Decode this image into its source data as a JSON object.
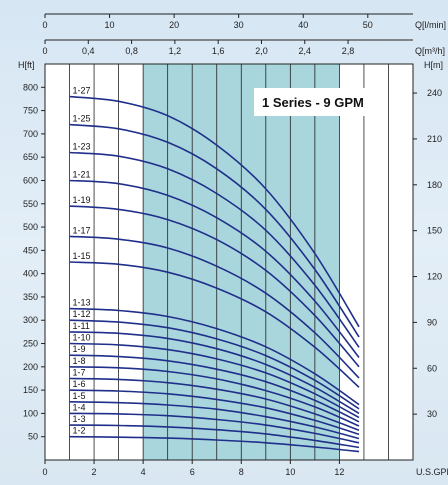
{
  "chart_data": {
    "type": "line",
    "title": "1 Series - 9 GPM",
    "xlabel": "U.S.GPM",
    "ylabel": "H[ft]",
    "x_range": [
      0,
      15
    ],
    "y_range": [
      0,
      850
    ],
    "x_ticks": [
      "0",
      "2",
      "4",
      "6",
      "8",
      "10",
      "12"
    ],
    "y_ticks": [
      "50",
      "100",
      "150",
      "200",
      "250",
      "300",
      "350",
      "400",
      "450",
      "500",
      "550",
      "600",
      "650",
      "700",
      "750",
      "800"
    ],
    "top_axis_q_lmin": {
      "label": "Q[l/min]",
      "ticks": [
        "0",
        "10",
        "20",
        "30",
        "40",
        "50"
      ],
      "range": [
        0,
        57
      ]
    },
    "top_axis_q_m3h": {
      "label": "Q[m³/h]",
      "ticks": [
        "0",
        "0,4",
        "0,8",
        "1,2",
        "1,6",
        "2,0",
        "2,4",
        "2,8"
      ],
      "range": [
        0,
        3.4
      ]
    },
    "right_axis_h_m": {
      "label": "H[m]",
      "ticks": [
        "30",
        "60",
        "90",
        "120",
        "150",
        "180",
        "210",
        "240"
      ],
      "range": [
        0,
        259
      ]
    },
    "recommended_range_gpm": [
      4,
      12
    ],
    "grid": true,
    "series": [
      {
        "name": "1-2",
        "x": [
          1,
          3,
          5,
          7,
          9,
          11,
          12.8
        ],
        "y": [
          50,
          49,
          47,
          43,
          37,
          28,
          18
        ]
      },
      {
        "name": "1-3",
        "x": [
          1,
          3,
          5,
          7,
          9,
          11,
          12.8
        ],
        "y": [
          75,
          74,
          71,
          65,
          56,
          42,
          27
        ]
      },
      {
        "name": "1-4",
        "x": [
          1,
          3,
          5,
          7,
          9,
          11,
          12.8
        ],
        "y": [
          100,
          99,
          95,
          87,
          75,
          57,
          37
        ]
      },
      {
        "name": "1-5",
        "x": [
          1,
          3,
          5,
          7,
          9,
          11,
          12.8
        ],
        "y": [
          125,
          123,
          118,
          109,
          93,
          71,
          46
        ]
      },
      {
        "name": "1-6",
        "x": [
          1,
          3,
          5,
          7,
          9,
          11,
          12.8
        ],
        "y": [
          150,
          148,
          142,
          130,
          112,
          85,
          55
        ]
      },
      {
        "name": "1-7",
        "x": [
          1,
          3,
          5,
          7,
          9,
          11,
          12.8
        ],
        "y": [
          175,
          173,
          166,
          152,
          131,
          99,
          64
        ]
      },
      {
        "name": "1-8",
        "x": [
          1,
          3,
          5,
          7,
          9,
          11,
          12.8
        ],
        "y": [
          200,
          198,
          190,
          174,
          149,
          114,
          73
        ]
      },
      {
        "name": "1-9",
        "x": [
          1,
          3,
          5,
          7,
          9,
          11,
          12.8
        ],
        "y": [
          225,
          222,
          213,
          195,
          168,
          128,
          82
        ]
      },
      {
        "name": "1-10",
        "x": [
          1,
          3,
          5,
          7,
          9,
          11,
          12.8
        ],
        "y": [
          250,
          247,
          237,
          217,
          187,
          142,
          91
        ]
      },
      {
        "name": "1-11",
        "x": [
          1,
          3,
          5,
          7,
          9,
          11,
          12.8
        ],
        "y": [
          275,
          272,
          261,
          239,
          205,
          156,
          100
        ]
      },
      {
        "name": "1-12",
        "x": [
          1,
          3,
          5,
          7,
          9,
          11,
          12.8
        ],
        "y": [
          300,
          296,
          284,
          260,
          224,
          171,
          110
        ]
      },
      {
        "name": "1-13",
        "x": [
          1,
          3,
          5,
          7,
          9,
          11,
          12.8
        ],
        "y": [
          325,
          321,
          308,
          282,
          243,
          185,
          119
        ]
      },
      {
        "name": "1-15",
        "x": [
          1,
          3,
          5,
          7,
          9,
          11,
          12.8
        ],
        "y": [
          425,
          420,
          403,
          369,
          318,
          242,
          156
        ]
      },
      {
        "name": "1-17",
        "x": [
          1,
          3,
          5,
          7,
          9,
          11,
          12.8
        ],
        "y": [
          480,
          474,
          455,
          416,
          358,
          273,
          176
        ]
      },
      {
        "name": "1-19",
        "x": [
          1,
          3,
          5,
          7,
          9,
          11,
          12.8
        ],
        "y": [
          545,
          538,
          516,
          473,
          407,
          310,
          200
        ]
      },
      {
        "name": "1-21",
        "x": [
          1,
          3,
          5,
          7,
          9,
          11,
          12.8
        ],
        "y": [
          600,
          593,
          568,
          520,
          448,
          341,
          220
        ]
      },
      {
        "name": "1-23",
        "x": [
          1,
          3,
          5,
          7,
          9,
          11,
          12.8
        ],
        "y": [
          660,
          652,
          625,
          572,
          493,
          375,
          242
        ]
      },
      {
        "name": "1-25",
        "x": [
          1,
          3,
          5,
          7,
          9,
          11,
          12.8
        ],
        "y": [
          720,
          711,
          682,
          625,
          538,
          409,
          264
        ]
      },
      {
        "name": "1-27",
        "x": [
          1,
          3,
          5,
          7,
          9,
          11,
          12.8
        ],
        "y": [
          780,
          770,
          739,
          676,
          582,
          443,
          286
        ]
      }
    ]
  }
}
